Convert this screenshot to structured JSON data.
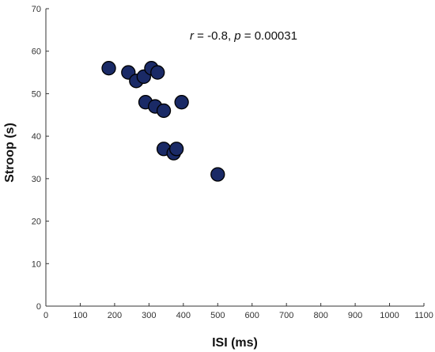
{
  "chart_data": {
    "type": "scatter",
    "xlabel": "ISI (ms)",
    "ylabel": "Stroop (s)",
    "xlim": [
      0,
      1100
    ],
    "ylim": [
      0,
      70
    ],
    "xticks": [
      "0",
      "100",
      "200",
      "300",
      "400",
      "500",
      "600",
      "700",
      "800",
      "900",
      "1000",
      "1100"
    ],
    "yticks": [
      "0",
      "10",
      "20",
      "30",
      "40",
      "50",
      "60",
      "70"
    ],
    "annotation": {
      "r_symbol": "r",
      "r_value": " = -0.8, ",
      "p_symbol": "p",
      "p_value": " = 0.00031"
    },
    "grid": false,
    "marker_color": "#1a2a66",
    "series": [
      {
        "x": [
          183,
          240,
          263,
          285,
          307,
          325,
          290,
          318,
          343,
          395,
          343,
          372,
          380,
          500
        ],
        "y": [
          56,
          55,
          53,
          54,
          56,
          55,
          48,
          47,
          46,
          48,
          37,
          36,
          37,
          31
        ]
      }
    ]
  }
}
